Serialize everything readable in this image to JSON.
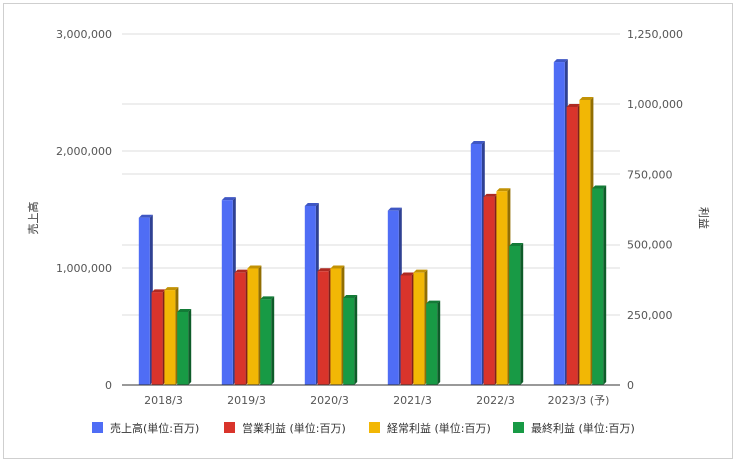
{
  "chart_data": {
    "type": "bar",
    "categories": [
      "2018/3",
      "2019/3",
      "2020/3",
      "2021/3",
      "2022/3",
      "2023/3 (予)"
    ],
    "ylabel_left": "売上高",
    "ylabel_right": "利益",
    "left_axis": {
      "min": 0,
      "max": 3000000,
      "ticks": [
        "0",
        "1,000,000",
        "2,000,000",
        "3,000,000"
      ]
    },
    "right_axis": {
      "min": 0,
      "max": 1250000,
      "ticks": [
        "0",
        "250,000",
        "500,000",
        "750,000",
        "1,000,000",
        "1,250,000"
      ]
    },
    "grid": true,
    "legend_position": "bottom",
    "series": [
      {
        "name": "売上高(単位:百万)",
        "axis": "left",
        "color": "#4f6df5",
        "values": [
          1430000,
          1580000,
          1530000,
          1490000,
          2060000,
          2760000
        ]
      },
      {
        "name": "営業利益 (単位:百万)",
        "axis": "right",
        "color": "#d9342b",
        "values": [
          330000,
          400000,
          405000,
          390000,
          670000,
          990000
        ]
      },
      {
        "name": "経常利益 (単位:百万)",
        "axis": "right",
        "color": "#f2b705",
        "values": [
          338000,
          415000,
          415000,
          400000,
          690000,
          1015000
        ]
      },
      {
        "name": "最終利益 (単位:百万)",
        "axis": "right",
        "color": "#189a45",
        "values": [
          260000,
          305000,
          310000,
          290000,
          495000,
          700000
        ]
      }
    ]
  }
}
